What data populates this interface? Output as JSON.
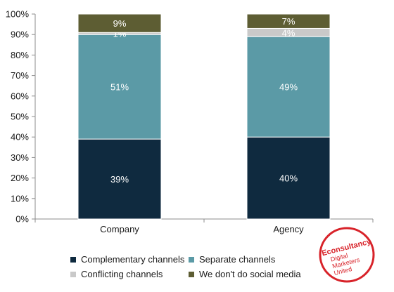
{
  "chart_data": {
    "type": "bar",
    "stacked": true,
    "categories": [
      "Company",
      "Agency"
    ],
    "series": [
      {
        "name": "Complementary channels",
        "values": [
          39,
          40
        ],
        "labels": [
          "39%",
          "40%"
        ],
        "color": "#0f2a3f",
        "label_color": "#ffffff"
      },
      {
        "name": "Separate channels",
        "values": [
          51,
          49
        ],
        "labels": [
          "51%",
          "49%"
        ],
        "color": "#5b9aa6",
        "label_color": "#ffffff"
      },
      {
        "name": "Conflicting channels",
        "values": [
          1,
          4
        ],
        "labels": [
          "1%",
          "4%"
        ],
        "color": "#c9c9c9",
        "label_color": "#ffffff"
      },
      {
        "name": "We don't do social media",
        "values": [
          9,
          7
        ],
        "labels": [
          "9%",
          "7%"
        ],
        "color": "#5d5d33",
        "label_color": "#ffffff"
      }
    ],
    "ylim": [
      0,
      100
    ],
    "yticks": [
      "0%",
      "10%",
      "20%",
      "30%",
      "40%",
      "50%",
      "60%",
      "70%",
      "80%",
      "90%",
      "100%"
    ],
    "grid": false,
    "legend_position": "bottom"
  },
  "logo": {
    "lines": [
      "Econsultancy",
      "Digital",
      "Marketers",
      "United"
    ],
    "color": "#d8232a"
  }
}
